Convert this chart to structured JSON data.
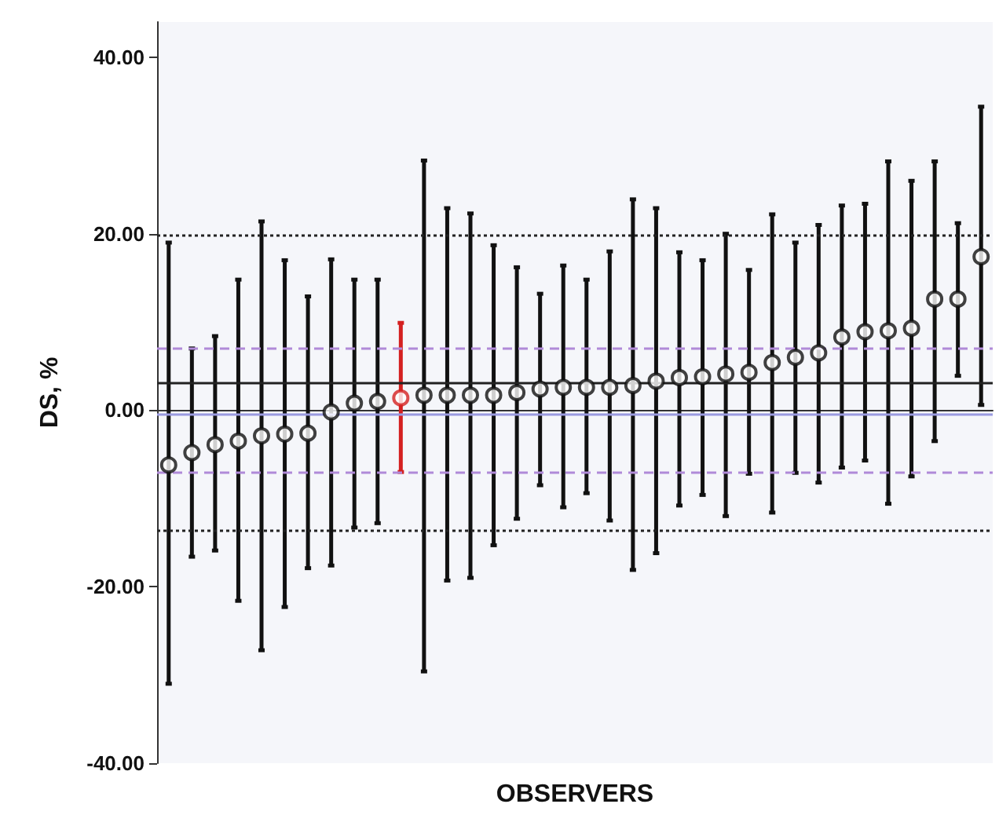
{
  "chart_data": {
    "type": "scatter",
    "xlabel": "OBSERVERS",
    "ylabel": "DS, %",
    "categories": [
      null,
      null,
      null,
      null,
      null,
      null,
      null,
      null,
      null,
      null,
      null,
      null,
      null,
      null,
      null,
      null,
      null,
      null,
      null,
      null,
      null,
      null,
      null,
      null,
      null,
      null,
      null,
      null,
      null,
      null,
      null,
      null,
      null,
      null,
      null,
      null
    ],
    "series": [
      {
        "values": [
          -6.2,
          -4.8,
          -3.9,
          -3.5,
          -2.9,
          -2.7,
          -2.6,
          -0.2,
          0.8,
          1.0,
          1.4,
          1.7,
          1.7,
          1.7,
          1.7,
          2.0,
          2.4,
          2.6,
          2.6,
          2.6,
          2.8,
          3.3,
          3.7,
          3.8,
          4.1,
          4.3,
          5.4,
          6.0,
          6.5,
          8.3,
          8.9,
          9.0,
          9.3,
          12.6,
          12.6,
          17.4
        ],
        "colors": [
          "#111111",
          "#111111",
          "#111111",
          "#111111",
          "#111111",
          "#111111",
          "#111111",
          "#111111",
          "#111111",
          "#111111",
          "#d42020",
          "#111111",
          "#111111",
          "#111111",
          "#111111",
          "#111111",
          "#111111",
          "#111111",
          "#111111",
          "#111111",
          "#111111",
          "#111111",
          "#111111",
          "#111111",
          "#111111",
          "#111111",
          "#111111",
          "#111111",
          "#111111",
          "#111111",
          "#111111",
          "#111111",
          "#111111",
          "#111111",
          "#111111",
          "#111111"
        ],
        "errors": [
          [
            -31.0,
            19.0
          ],
          [
            -16.6,
            7.0
          ],
          [
            -15.9,
            8.4
          ],
          [
            -21.6,
            14.8
          ],
          [
            -27.2,
            21.4
          ],
          [
            -22.3,
            17.0
          ],
          [
            -17.9,
            12.9
          ],
          [
            -17.6,
            17.1
          ],
          [
            -13.3,
            14.8
          ],
          [
            -12.8,
            14.8
          ],
          [
            -7.0,
            9.9
          ],
          [
            -29.6,
            28.3
          ],
          [
            -19.3,
            22.9
          ],
          [
            -19.0,
            22.3
          ],
          [
            -15.3,
            18.7
          ],
          [
            -12.3,
            16.2
          ],
          [
            -8.5,
            13.2
          ],
          [
            -11.0,
            16.4
          ],
          [
            -9.4,
            14.8
          ],
          [
            -12.5,
            18.0
          ],
          [
            -18.1,
            23.9
          ],
          [
            -16.2,
            22.9
          ],
          [
            -10.8,
            17.9
          ],
          [
            -9.6,
            17.0
          ],
          [
            -12.0,
            20.0
          ],
          [
            -7.2,
            15.9
          ],
          [
            -11.6,
            22.2
          ],
          [
            -7.1,
            19.0
          ],
          [
            -8.2,
            21.0
          ],
          [
            -6.5,
            23.2
          ],
          [
            -5.7,
            23.4
          ],
          [
            -10.6,
            28.2
          ],
          [
            -7.5,
            26.0
          ],
          [
            -3.5,
            28.2
          ],
          [
            3.9,
            21.2
          ],
          [
            0.6,
            34.4
          ]
        ]
      }
    ],
    "ylim": [
      -40,
      44
    ],
    "yticks": [
      {
        "value": -40,
        "label": "-40.00"
      },
      {
        "value": -20,
        "label": "-20.00"
      },
      {
        "value": 0,
        "label": "0.00"
      },
      {
        "value": 20,
        "label": "20.00"
      },
      {
        "value": 40,
        "label": "40.00"
      }
    ],
    "tick_labels": "y",
    "grid": false,
    "marker": "circle",
    "ref_lines": [
      {
        "axis": "y",
        "value": 3.2,
        "color": "#222222",
        "line_style": "solid"
      },
      {
        "axis": "y",
        "value": -0.5,
        "color": "#9a9ae0",
        "line_style": "solid"
      },
      {
        "axis": "y",
        "value": 7.0,
        "color": "#b08ad8",
        "line_style": "dashed"
      },
      {
        "axis": "y",
        "value": -7.0,
        "color": "#b08ad8",
        "line_style": "dashed"
      },
      {
        "axis": "y",
        "value": 19.8,
        "color": "#222222",
        "line_style": "dotted"
      },
      {
        "axis": "y",
        "value": -13.6,
        "color": "#222222",
        "line_style": "dotted"
      }
    ]
  }
}
